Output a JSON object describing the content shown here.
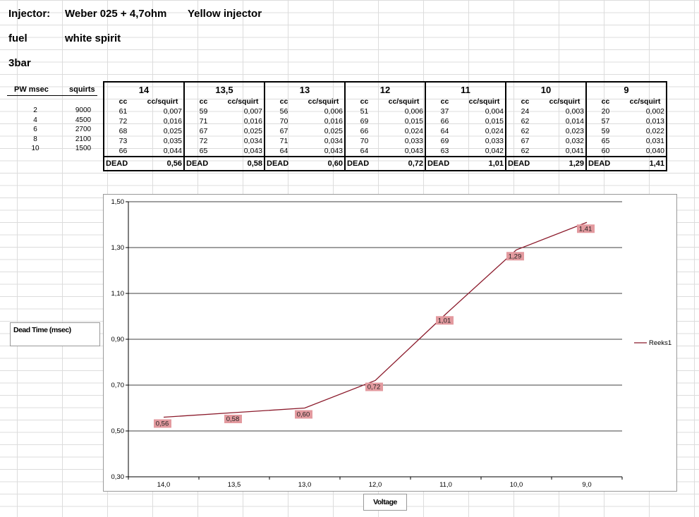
{
  "header": {
    "injector_label": "Injector:",
    "injector_value": "Weber 025 + 4,7ohm",
    "injector_note": "Yellow injector",
    "fuel_label": "fuel",
    "fuel_value": "white spirit",
    "pressure": "3bar"
  },
  "pw_table": {
    "col_pw": "PW  msec",
    "col_squirts": "squirts",
    "rows": [
      {
        "pw": "2",
        "squirts": "9000"
      },
      {
        "pw": "4",
        "squirts": "4500"
      },
      {
        "pw": "6",
        "squirts": "2700"
      },
      {
        "pw": "8",
        "squirts": "2100"
      },
      {
        "pw": "10",
        "squirts": "1500"
      }
    ]
  },
  "voltage_table": {
    "sub_cc": "cc",
    "sub_sq": "cc/squirt",
    "dead_label": "DEAD",
    "groups": [
      {
        "voltage": "14",
        "cc": [
          "61",
          "72",
          "68",
          "73",
          "66"
        ],
        "sq": [
          "0,007",
          "0,016",
          "0,025",
          "0,035",
          "0,044"
        ],
        "dead": "0,56"
      },
      {
        "voltage": "13,5",
        "cc": [
          "59",
          "71",
          "67",
          "72",
          "65"
        ],
        "sq": [
          "0,007",
          "0,016",
          "0,025",
          "0,034",
          "0,043"
        ],
        "dead": "0,58"
      },
      {
        "voltage": "13",
        "cc": [
          "56",
          "70",
          "67",
          "71",
          "64"
        ],
        "sq": [
          "0,006",
          "0,016",
          "0,025",
          "0,034",
          "0,043"
        ],
        "dead": "0,60"
      },
      {
        "voltage": "12",
        "cc": [
          "51",
          "69",
          "66",
          "70",
          "64"
        ],
        "sq": [
          "0,006",
          "0,015",
          "0,024",
          "0,033",
          "0,043"
        ],
        "dead": "0,72"
      },
      {
        "voltage": "11",
        "cc": [
          "37",
          "66",
          "64",
          "69",
          "63"
        ],
        "sq": [
          "0,004",
          "0,015",
          "0,024",
          "0,033",
          "0,042"
        ],
        "dead": "1,01"
      },
      {
        "voltage": "10",
        "cc": [
          "24",
          "62",
          "62",
          "67",
          "62"
        ],
        "sq": [
          "0,003",
          "0,014",
          "0,023",
          "0,032",
          "0,041"
        ],
        "dead": "1,29"
      },
      {
        "voltage": "9",
        "cc": [
          "20",
          "57",
          "59",
          "65",
          "60"
        ],
        "sq": [
          "0,002",
          "0,013",
          "0,022",
          "0,031",
          "0,040"
        ],
        "dead": "1,41"
      }
    ]
  },
  "chart_data": {
    "type": "line",
    "title": "Dead Time (msec)",
    "xlabel": "Voltage",
    "ylabel": "Dead Time (msec)",
    "categories": [
      "14,0",
      "13,5",
      "13,0",
      "12,0",
      "11,0",
      "10,0",
      "9,0"
    ],
    "series": [
      {
        "name": "Reeks1",
        "values": [
          0.56,
          0.58,
          0.6,
          0.72,
          1.01,
          1.29,
          1.41
        ],
        "labels": [
          "0,56",
          "0,58",
          "0,60",
          "0,72",
          "1,01",
          "1,29",
          "1,41"
        ],
        "color": "#8b1a2b"
      }
    ],
    "ylim": [
      0.3,
      1.5
    ],
    "yticks": [
      "0,30",
      "0,50",
      "0,70",
      "0,90",
      "1,10",
      "1,30",
      "1,50"
    ],
    "grid": true,
    "legend": "right",
    "label_bg": "#e39a9f"
  }
}
